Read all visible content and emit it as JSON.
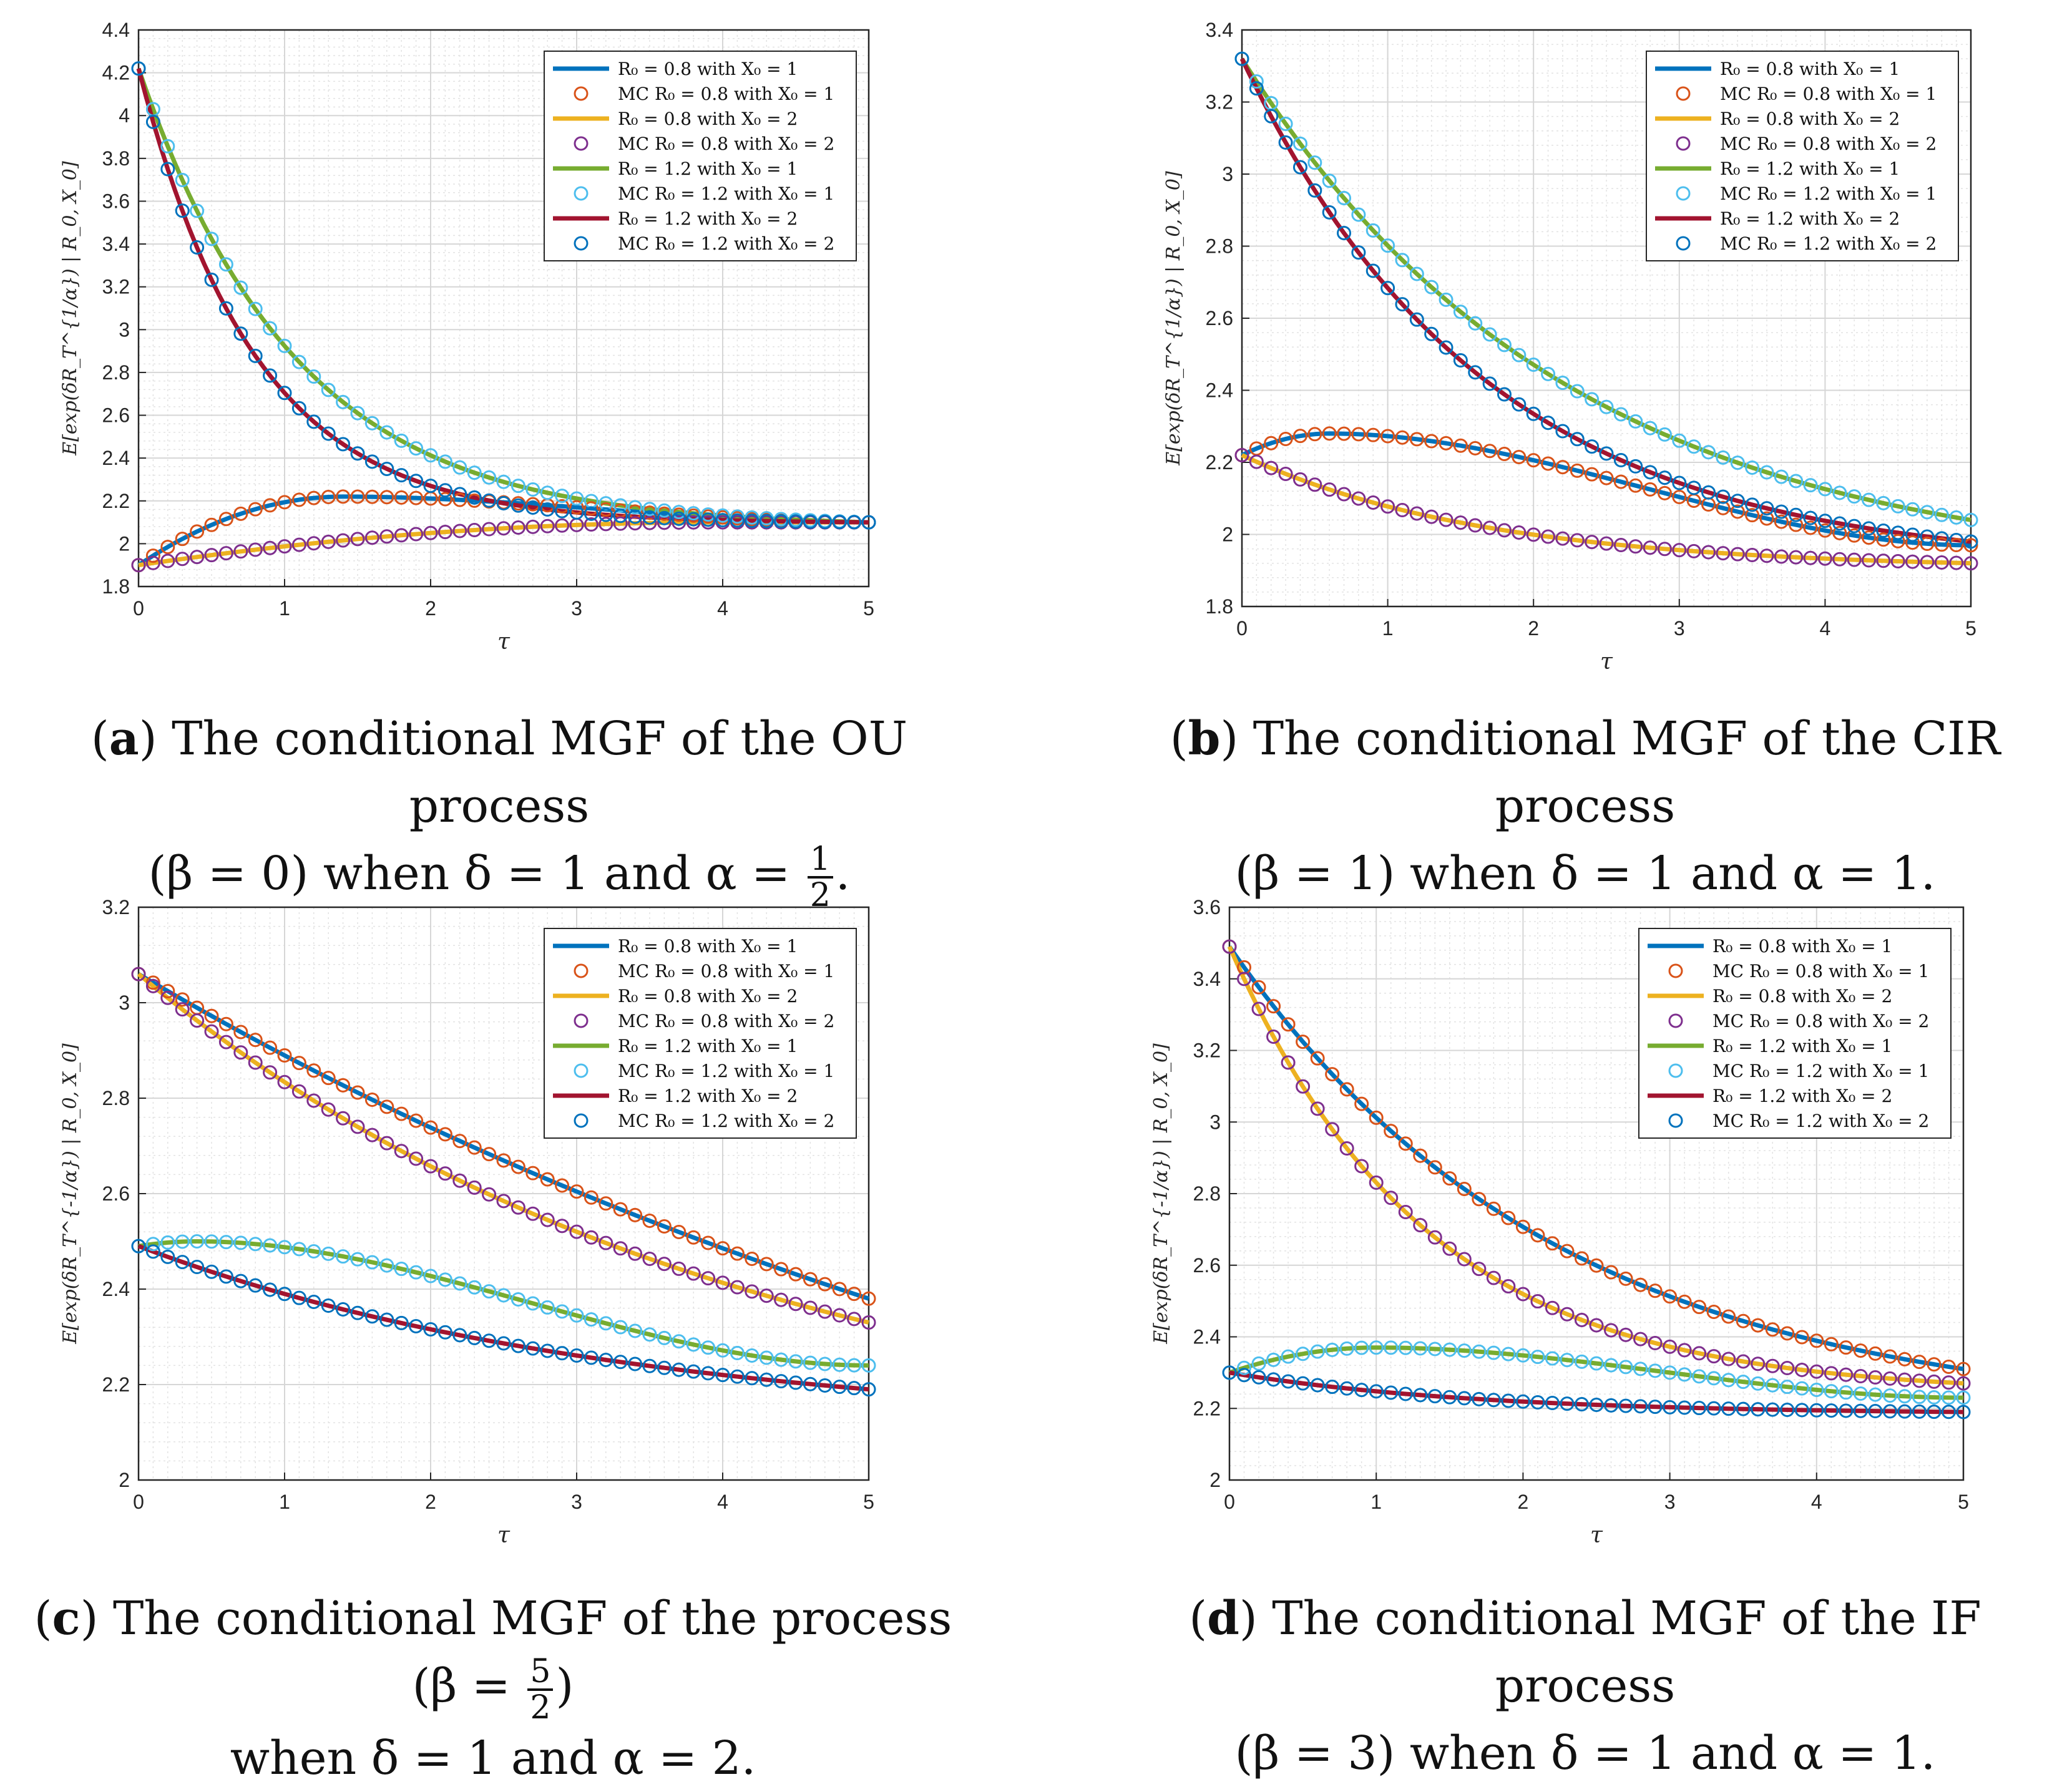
{
  "colors": {
    "blue": "#0072BD",
    "orange": "#D95319",
    "yellow": "#EDB120",
    "purple": "#7E2F8E",
    "green": "#77AC30",
    "cyan": "#4DBEEE",
    "darkred": "#A2142F",
    "darkblue": "#0072BD"
  },
  "chart_data": [
    {
      "id": "a",
      "type": "line",
      "xlabel": "τ",
      "ylabel": "E[exp(δR_T^{1/α}) | R_0, X_0]",
      "xlim": [
        0,
        5
      ],
      "ylim": [
        1.8,
        4.4
      ],
      "xticks": [
        "0",
        "1",
        "2",
        "3",
        "4",
        "5"
      ],
      "yticks": [
        "1.8",
        "2",
        "2.2",
        "2.4",
        "2.6",
        "2.8",
        "3",
        "3.2",
        "3.4",
        "3.6",
        "3.8",
        "4",
        "4.2",
        "4.4"
      ],
      "legend": [
        "R₀ = 0.8 with X₀ = 1",
        "MC R₀ = 0.8 with X₀ = 1",
        "R₀ = 0.8 with X₀ = 2",
        "MC R₀ = 0.8 with X₀ = 2",
        "R₀ = 1.2 with X₀ = 1",
        "MC R₀ = 1.2 with X₀ = 1",
        "R₀ = 1.2 with X₀ = 2",
        "MC R₀ = 1.2 with X₀ = 2"
      ],
      "series": [
        {
          "name": "R0=0.8 X0=1",
          "start": 1.9,
          "end": 2.1,
          "peak_t": 1.4,
          "peak": 2.22
        },
        {
          "name": "R0=0.8 X0=2",
          "start": 1.9,
          "end": 2.1,
          "peak_t": 4.0,
          "peak": 2.1
        },
        {
          "name": "R0=1.2 X0=1",
          "start": 4.22,
          "end": 2.1,
          "decay": 0.93
        },
        {
          "name": "R0=1.2 X0=2",
          "start": 4.22,
          "end": 2.1,
          "decay": 1.25
        }
      ],
      "caption_label": "a",
      "caption_line1": "The conditional MGF of the OU process",
      "caption_line2_pre": "(β = 0) when δ = 1 and α = ",
      "caption_frac_num": "1",
      "caption_frac_den": "2",
      "caption_line2_post": "."
    },
    {
      "id": "b",
      "type": "line",
      "xlabel": "τ",
      "ylabel": "E[exp(δR_T^{1/α}) | R_0, X_0]",
      "xlim": [
        0,
        5
      ],
      "ylim": [
        1.8,
        3.4
      ],
      "xticks": [
        "0",
        "1",
        "2",
        "3",
        "4",
        "5"
      ],
      "yticks": [
        "1.8",
        "2",
        "2.2",
        "2.4",
        "2.6",
        "2.8",
        "3",
        "3.2",
        "3.4"
      ],
      "legend": [
        "R₀ = 0.8 with X₀ = 1",
        "MC R₀ = 0.8 with X₀ = 1",
        "R₀ = 0.8 with X₀ = 2",
        "MC R₀ = 0.8 with X₀ = 2",
        "R₀ = 1.2 with X₀ = 1",
        "MC R₀ = 1.2 with X₀ = 1",
        "R₀ = 1.2 with X₀ = 2",
        "MC R₀ = 1.2 with X₀ = 2"
      ],
      "series": [
        {
          "name": "R0=0.8 X0=1",
          "start": 2.22,
          "end": 1.97,
          "peak_t": 0.6,
          "peak": 2.28
        },
        {
          "name": "R0=0.8 X0=2",
          "start": 2.22,
          "end": 1.92,
          "decay": 0.6
        },
        {
          "name": "R0=1.2 X0=1",
          "start": 3.32,
          "end": 2.04,
          "decay": 0.45
        },
        {
          "name": "R0=1.2 X0=2",
          "start": 3.32,
          "end": 1.98,
          "decay": 0.6
        }
      ],
      "caption_label": "b",
      "caption_line1": "The conditional MGF of the CIR process",
      "caption_line2_pre": "(β = 1) when δ = 1 and α = 1.",
      "caption_frac_num": "",
      "caption_frac_den": "",
      "caption_line2_post": ""
    },
    {
      "id": "c",
      "type": "line",
      "xlabel": "τ",
      "ylabel": "E[exp(δR_T^{-1/α}) | R_0, X_0]",
      "xlim": [
        0,
        5
      ],
      "ylim": [
        2,
        3.2
      ],
      "xticks": [
        "0",
        "1",
        "2",
        "3",
        "4",
        "5"
      ],
      "yticks": [
        "2",
        "2.2",
        "2.4",
        "2.6",
        "2.8",
        "3",
        "3.2"
      ],
      "legend": [
        "R₀ = 0.8 with X₀ = 1",
        "MC R₀ = 0.8 with X₀ = 1",
        "R₀ = 0.8 with X₀ = 2",
        "MC R₀ = 0.8 with X₀ = 2",
        "R₀ = 1.2 with X₀ = 1",
        "MC R₀ = 1.2 with X₀ = 1",
        "R₀ = 1.2 with X₀ = 2",
        "MC R₀ = 1.2 with X₀ = 2"
      ],
      "series": [
        {
          "name": "R0=0.8 X0=1",
          "start": 3.06,
          "end": 2.38,
          "decay": 0.12
        },
        {
          "name": "R0=0.8 X0=2",
          "start": 3.06,
          "end": 2.33,
          "decay": 0.25
        },
        {
          "name": "R0=1.2 X0=1",
          "start": 2.49,
          "end": 2.24,
          "peak_t": 0.4,
          "peak": 2.5
        },
        {
          "name": "R0=1.2 X0=2",
          "start": 2.49,
          "end": 2.19,
          "decay": 0.3
        }
      ],
      "caption_label": "c",
      "caption_line1_pre": "The conditional MGF of the process (β = ",
      "caption_line1_frac_num": "5",
      "caption_line1_frac_den": "2",
      "caption_line1_post": ")",
      "caption_line2": "when δ = 1 and α = 2."
    },
    {
      "id": "d",
      "type": "line",
      "xlabel": "τ",
      "ylabel": "E[exp(δR_T^{-1/α}) | R_0, X_0]",
      "xlim": [
        0,
        5
      ],
      "ylim": [
        2,
        3.6
      ],
      "xticks": [
        "0",
        "1",
        "2",
        "3",
        "4",
        "5"
      ],
      "yticks": [
        "2",
        "2.2",
        "2.4",
        "2.6",
        "2.8",
        "3",
        "3.2",
        "3.4",
        "3.6"
      ],
      "legend": [
        "R₀ = 0.8 with X₀ = 1",
        "MC R₀ = 0.8 with X₀ = 1",
        "R₀ = 0.8 with X₀ = 2",
        "MC R₀ = 0.8 with X₀ = 2",
        "R₀ = 1.2 with X₀ = 1",
        "MC R₀ = 1.2 with X₀ = 1",
        "R₀ = 1.2 with X₀ = 2",
        "MC R₀ = 1.2 with X₀ = 2"
      ],
      "series": [
        {
          "name": "R0=0.8 X0=1",
          "start": 3.49,
          "end": 2.31,
          "decay": 0.45
        },
        {
          "name": "R0=0.8 X0=2",
          "start": 3.49,
          "end": 2.27,
          "decay": 0.75
        },
        {
          "name": "R0=1.2 X0=1",
          "start": 2.3,
          "end": 2.23,
          "peak_t": 1.0,
          "peak": 2.37
        },
        {
          "name": "R0=1.2 X0=2",
          "start": 2.3,
          "end": 2.19,
          "decay": 0.6
        }
      ],
      "caption_label": "d",
      "caption_line1": "The conditional MGF of the IF process",
      "caption_line2": "(β = 3) when δ = 1 and α = 1."
    }
  ]
}
